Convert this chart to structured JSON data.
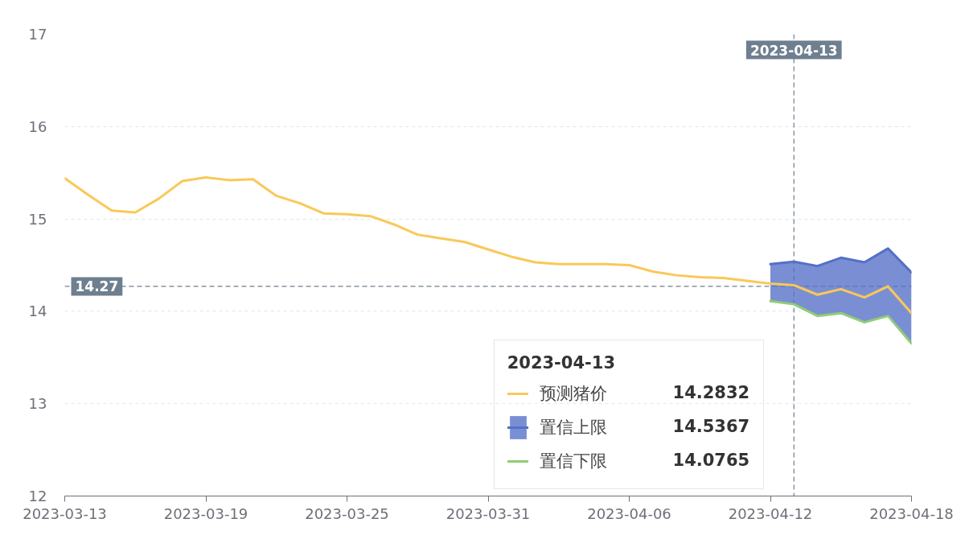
{
  "chart_data": {
    "type": "line",
    "x": [
      "2023-03-13",
      "2023-03-14",
      "2023-03-15",
      "2023-03-16",
      "2023-03-17",
      "2023-03-18",
      "2023-03-19",
      "2023-03-20",
      "2023-03-21",
      "2023-03-22",
      "2023-03-23",
      "2023-03-24",
      "2023-03-25",
      "2023-03-26",
      "2023-03-27",
      "2023-03-28",
      "2023-03-29",
      "2023-03-30",
      "2023-03-31",
      "2023-04-01",
      "2023-04-02",
      "2023-04-03",
      "2023-04-04",
      "2023-04-05",
      "2023-04-06",
      "2023-04-07",
      "2023-04-08",
      "2023-04-09",
      "2023-04-10",
      "2023-04-11",
      "2023-04-12",
      "2023-04-13",
      "2023-04-14",
      "2023-04-15",
      "2023-04-16",
      "2023-04-17",
      "2023-04-18"
    ],
    "series": [
      {
        "name": "预测猪价",
        "color": "#fac858",
        "values": [
          15.44,
          15.26,
          15.09,
          15.07,
          15.22,
          15.41,
          15.45,
          15.42,
          15.43,
          15.25,
          15.17,
          15.06,
          15.05,
          15.03,
          14.94,
          14.83,
          14.79,
          14.75,
          14.67,
          14.59,
          14.53,
          14.51,
          14.51,
          14.51,
          14.5,
          14.43,
          14.39,
          14.37,
          14.36,
          14.33,
          14.3,
          14.2832,
          14.18,
          14.24,
          14.15,
          14.27,
          13.98
        ]
      },
      {
        "name": "置信上限",
        "type": "area",
        "color": "#5470c6",
        "x": [
          "2023-04-12",
          "2023-04-13",
          "2023-04-14",
          "2023-04-15",
          "2023-04-16",
          "2023-04-17",
          "2023-04-18"
        ],
        "values": [
          14.51,
          14.5367,
          14.49,
          14.58,
          14.53,
          14.68,
          14.42
        ]
      },
      {
        "name": "置信下限",
        "type": "line",
        "color": "#91cc75",
        "x": [
          "2023-04-12",
          "2023-04-13",
          "2023-04-14",
          "2023-04-15",
          "2023-04-16",
          "2023-04-17",
          "2023-04-18"
        ],
        "values": [
          14.11,
          14.0765,
          13.95,
          13.98,
          13.88,
          13.95,
          13.65
        ]
      }
    ],
    "xlim": [
      "2023-03-13",
      "2023-04-18"
    ],
    "xticks": [
      "2023-03-13",
      "2023-03-19",
      "2023-03-25",
      "2023-03-31",
      "2023-04-06",
      "2023-04-12",
      "2023-04-18"
    ],
    "ylim": [
      12,
      17
    ],
    "yticks": [
      12,
      13,
      14,
      15,
      16,
      17
    ],
    "grid": "y",
    "legend": "bottom right",
    "legend_title": "2023-04-13",
    "annotations": [
      "14.2832",
      "14.5367",
      "14.0765"
    ],
    "ref_lines": [
      {
        "axis": "x",
        "value": "2023-04-13",
        "label": "2023-04-13",
        "color": "#6e7f8f",
        "line_style": "dashed"
      },
      {
        "axis": "y",
        "value": 14.27,
        "label": "14.27",
        "color": "#6e7f8f",
        "line_style": "dashed"
      }
    ]
  }
}
